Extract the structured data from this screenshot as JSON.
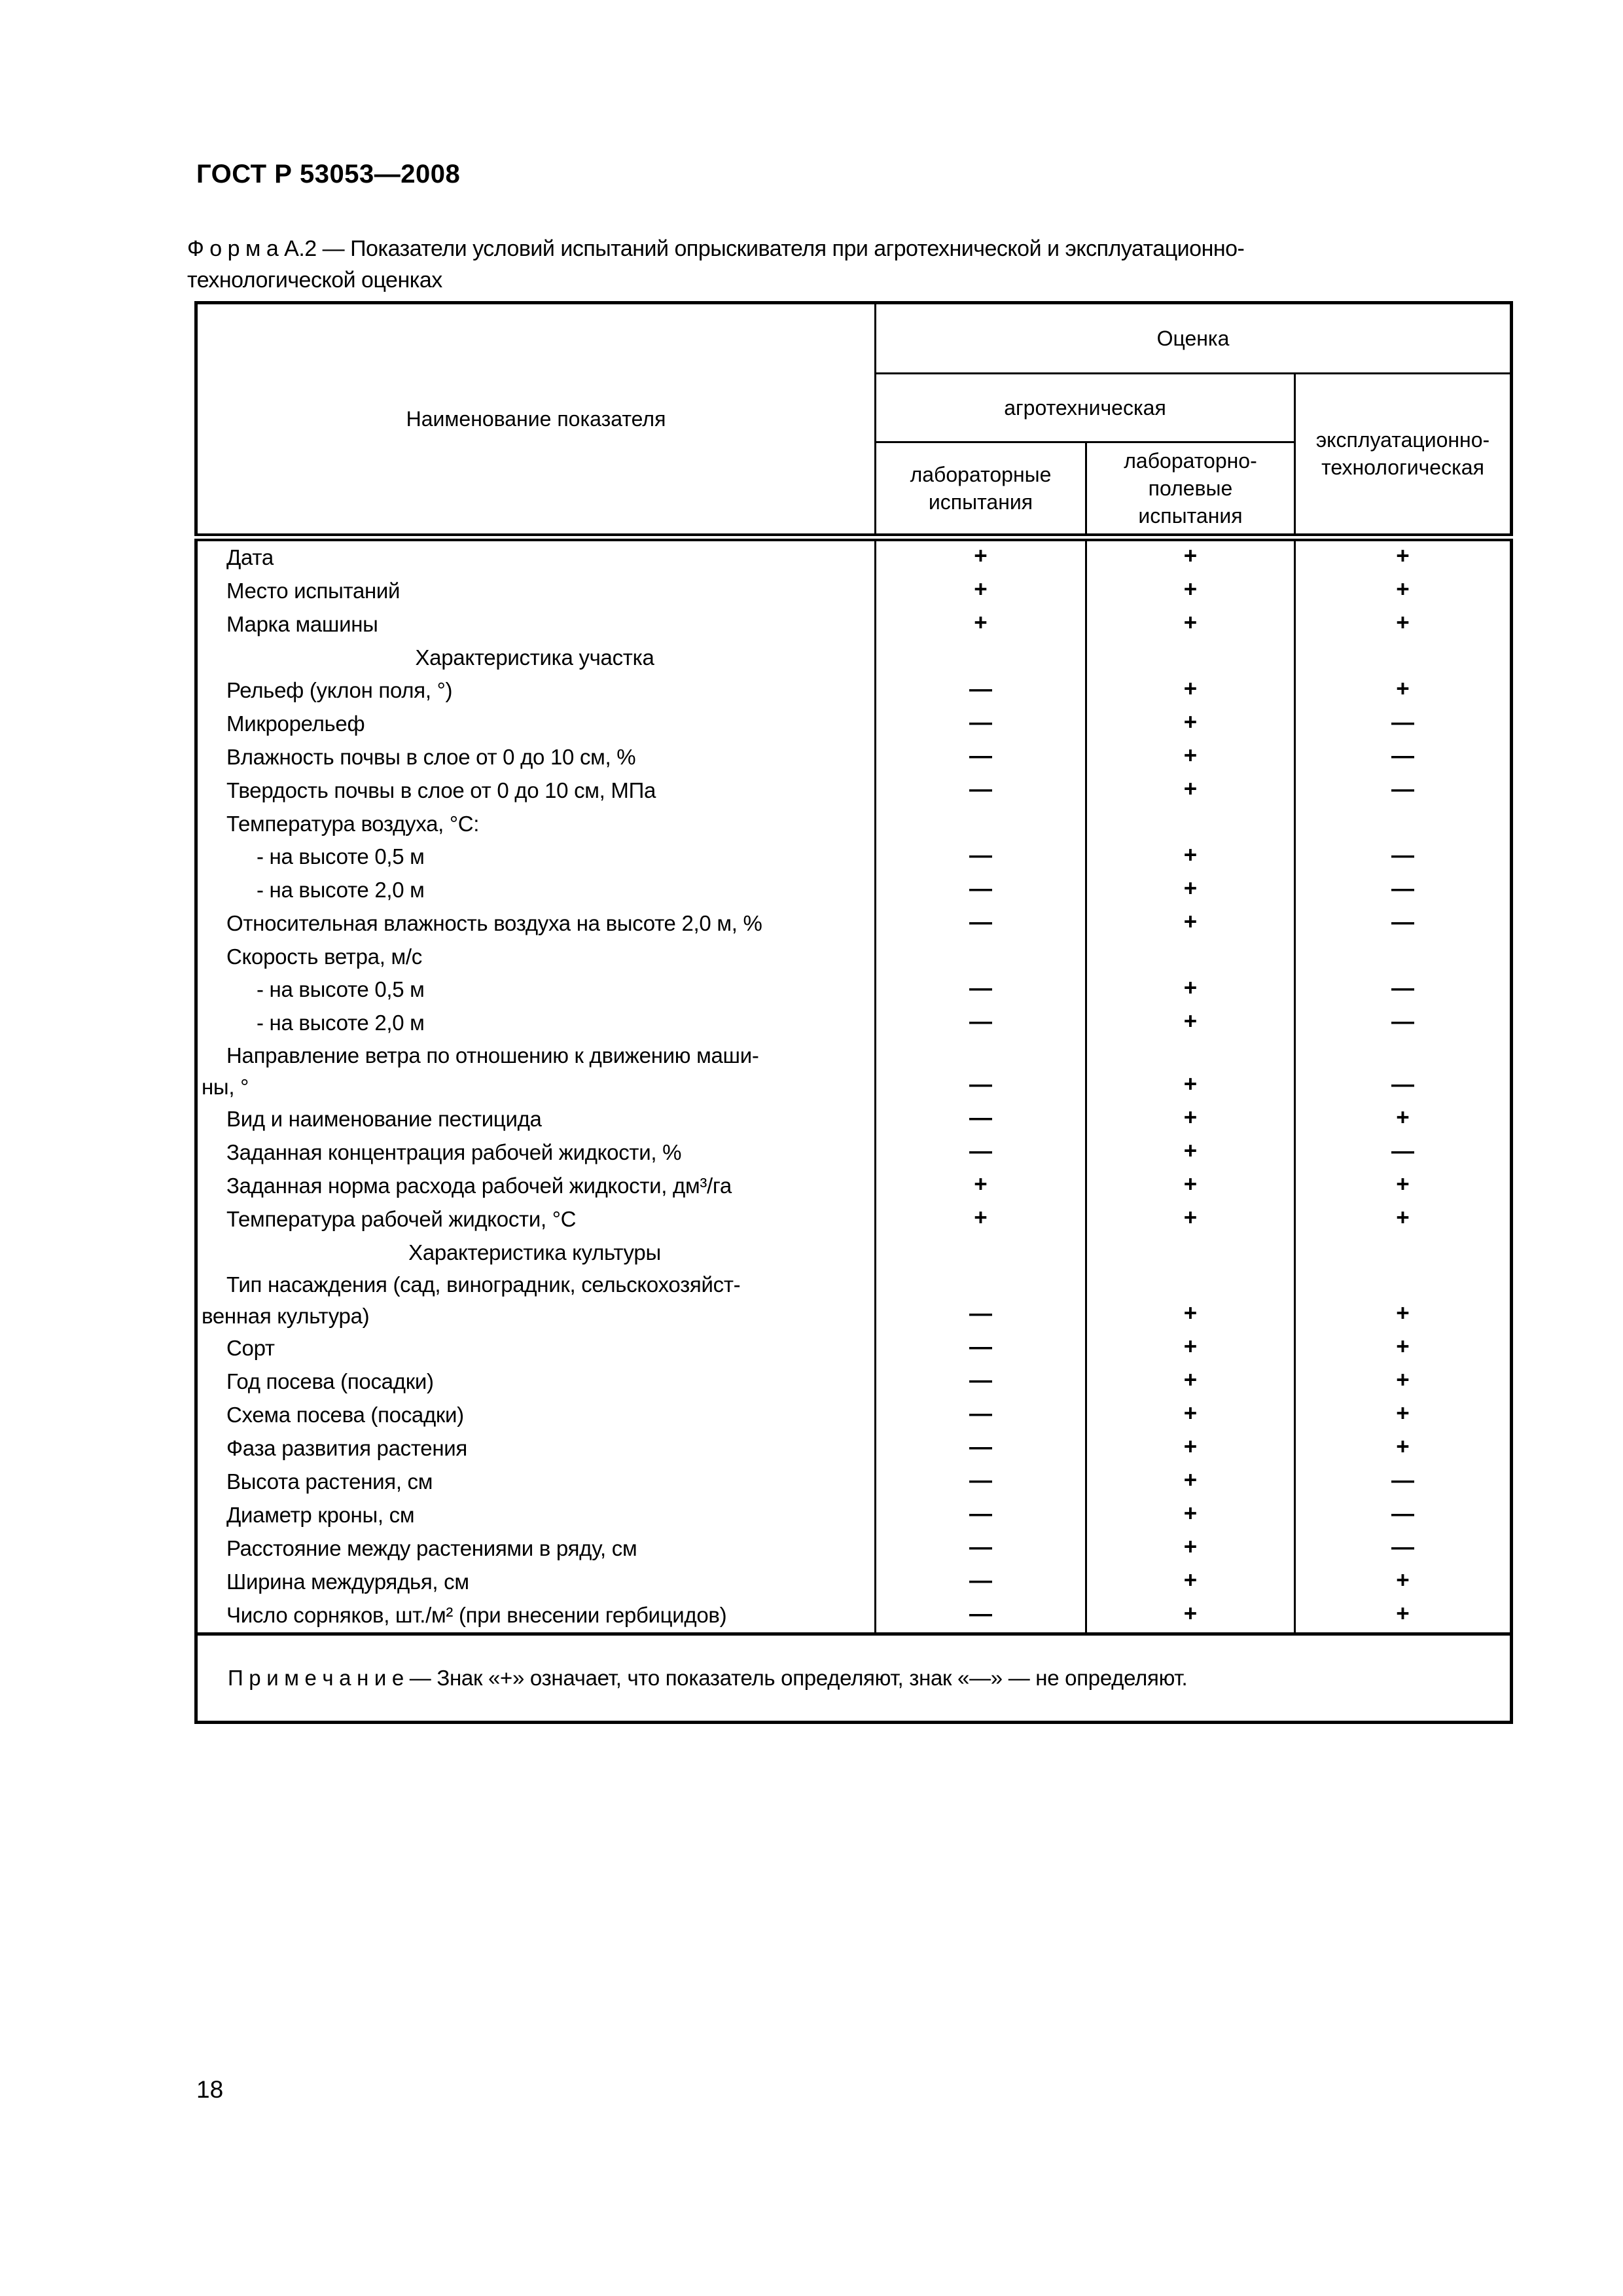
{
  "page": {
    "doc_number": "ГОСТ Р 53053—2008",
    "form_title": "Ф о р м а   А.2 — Показатели условий испытаний опрыскивателя при агротехнической и эксплуатационно-технологической оценках",
    "page_number": "18"
  },
  "table": {
    "header": {
      "name_col": "Наименование показателя",
      "evaluation": "Оценка",
      "agrotechnical": "агротехническая",
      "operational": [
        "эксплуатационно-",
        "технологическая"
      ],
      "lab_tests": [
        "лабораторные",
        "испытания"
      ],
      "lab_field_tests": [
        "лабораторно-",
        "полевые",
        "испытания"
      ]
    },
    "rows": [
      {
        "type": "item",
        "label": "Дата",
        "marks": [
          "+",
          "+",
          "+"
        ]
      },
      {
        "type": "item",
        "label": "Место испытаний",
        "marks": [
          "+",
          "+",
          "+"
        ]
      },
      {
        "type": "item",
        "label": "Марка машины",
        "marks": [
          "+",
          "+",
          "+"
        ]
      },
      {
        "type": "section",
        "label": "Характеристика участка",
        "marks": [
          "",
          "",
          ""
        ]
      },
      {
        "type": "item",
        "label": "Рельеф (уклон поля, °)",
        "marks": [
          "—",
          "+",
          "+"
        ]
      },
      {
        "type": "item",
        "label": "Микрорельеф",
        "marks": [
          "—",
          "+",
          "—"
        ]
      },
      {
        "type": "item",
        "label": "Влажность почвы в слое от 0 до 10 см, %",
        "marks": [
          "—",
          "+",
          "—"
        ]
      },
      {
        "type": "item",
        "label": "Твердость почвы в слое от 0 до 10 см, МПа",
        "marks": [
          "—",
          "+",
          "—"
        ]
      },
      {
        "type": "item",
        "label": "Температура воздуха, °С:",
        "marks": [
          "",
          "",
          ""
        ]
      },
      {
        "type": "sub",
        "label": "- на высоте 0,5 м",
        "marks": [
          "—",
          "+",
          "—"
        ]
      },
      {
        "type": "sub",
        "label": "- на высоте 2,0 м",
        "marks": [
          "—",
          "+",
          "—"
        ]
      },
      {
        "type": "item",
        "label": "Относительная влажность воздуха на высоте 2,0 м, %",
        "marks": [
          "—",
          "+",
          "—"
        ]
      },
      {
        "type": "item",
        "label": "Скорость ветра, м/с",
        "marks": [
          "",
          "",
          ""
        ]
      },
      {
        "type": "sub",
        "label": "- на высоте 0,5 м",
        "marks": [
          "—",
          "+",
          "—"
        ]
      },
      {
        "type": "sub",
        "label": "- на высоте 2,0 м",
        "marks": [
          "—",
          "+",
          "—"
        ]
      },
      {
        "type": "item",
        "label": [
          "Направление ветра по отношению к движению маши-",
          "ны, °"
        ],
        "marks": [
          "—",
          "+",
          "—"
        ]
      },
      {
        "type": "item",
        "label": "Вид и наименование пестицида",
        "marks": [
          "—",
          "+",
          "+"
        ]
      },
      {
        "type": "item",
        "label": "Заданная концентрация рабочей жидкости, %",
        "marks": [
          "—",
          "+",
          "—"
        ]
      },
      {
        "type": "item",
        "label": "Заданная норма расхода рабочей жидкости, дм³/га",
        "marks": [
          "+",
          "+",
          "+"
        ]
      },
      {
        "type": "item",
        "label": "Температура рабочей жидкости, °С",
        "marks": [
          "+",
          "+",
          "+"
        ]
      },
      {
        "type": "section",
        "label": "Характеристика культуры",
        "marks": [
          "",
          "",
          ""
        ]
      },
      {
        "type": "item",
        "label": [
          "Тип насаждения (сад, виноградник, сельскохозяйст-",
          "венная культура)"
        ],
        "marks": [
          "—",
          "+",
          "+"
        ]
      },
      {
        "type": "item",
        "label": "Сорт",
        "marks": [
          "—",
          "+",
          "+"
        ]
      },
      {
        "type": "item",
        "label": "Год посева (посадки)",
        "marks": [
          "—",
          "+",
          "+"
        ]
      },
      {
        "type": "item",
        "label": "Схема посева (посадки)",
        "marks": [
          "—",
          "+",
          "+"
        ]
      },
      {
        "type": "item",
        "label": "Фаза развития растения",
        "marks": [
          "—",
          "+",
          "+"
        ]
      },
      {
        "type": "item",
        "label": "Высота растения, см",
        "marks": [
          "—",
          "+",
          "—"
        ]
      },
      {
        "type": "item",
        "label": "Диаметр кроны, см",
        "marks": [
          "—",
          "+",
          "—"
        ]
      },
      {
        "type": "item",
        "label": "Расстояние между растениями в ряду, см",
        "marks": [
          "—",
          "+",
          "—"
        ]
      },
      {
        "type": "item",
        "label": "Ширина междурядья, см",
        "marks": [
          "—",
          "+",
          "+"
        ]
      },
      {
        "type": "item",
        "label": "Число сорняков, шт./м² (при внесении гербицидов)",
        "marks": [
          "—",
          "+",
          "+"
        ]
      }
    ],
    "note": "П р и м е ч а н и е — Знак «+» означает, что показатель определяют, знак «—» — не определяют."
  }
}
